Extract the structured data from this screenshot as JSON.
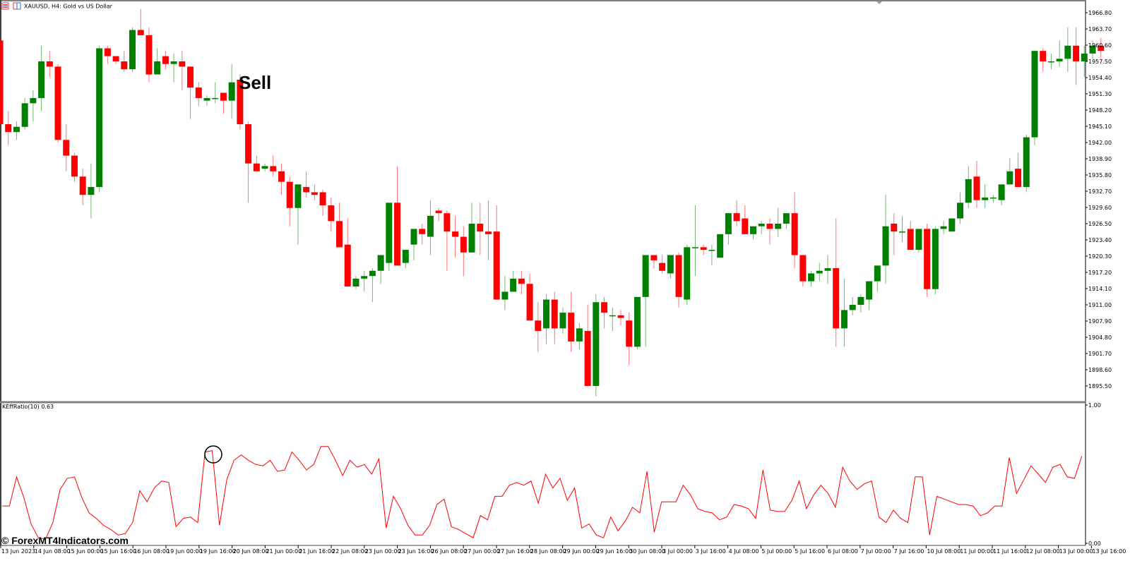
{
  "window": {
    "title": "XAUUSD, H4:  Gold vs US Dollar",
    "icons": [
      "chart-list-icon",
      "chart-window-icon"
    ]
  },
  "annotations": {
    "signal_label": "Sell",
    "watermark": "© ForexMT4Indicators.com"
  },
  "indicator": {
    "label": "KEffRatio(10) 0.63",
    "scale_top": "1.00",
    "scale_bottom": "0.00"
  },
  "colors": {
    "bull": "#008000",
    "bear": "#ff0000",
    "indicator_line": "#ff0000",
    "axis": "#808080",
    "background": "#ffffff"
  },
  "chart_data": [
    {
      "type": "candlestick",
      "title": "XAUUSD, H4: Gold vs US Dollar",
      "xlabel": "",
      "ylabel": "",
      "ylim": [
        1893.0,
        1969.0
      ],
      "y_ticks": [
        "1966.80",
        "1963.70",
        "1960.60",
        "1957.50",
        "1954.40",
        "1951.30",
        "1948.20",
        "1945.10",
        "1942.00",
        "1938.90",
        "1935.80",
        "1932.70",
        "1929.60",
        "1926.50",
        "1923.40",
        "1920.30",
        "1917.20",
        "1914.10",
        "1911.00",
        "1907.90",
        "1904.80",
        "1901.70",
        "1898.60",
        "1895.50"
      ],
      "x_ticks": [
        "13 Jun 2023",
        "14 Jun 08:00",
        "15 Jun 00:00",
        "15 Jun 16:00",
        "16 Jun 08:00",
        "19 Jun 00:00",
        "19 Jun 16:00",
        "20 Jun 08:00",
        "21 Jun 00:00",
        "21 Jun 16:00",
        "22 Jun 08:00",
        "23 Jun 00:00",
        "23 Jun 16:00",
        "26 Jun 08:00",
        "27 Jun 00:00",
        "27 Jun 16:00",
        "28 Jun 08:00",
        "29 Jun 00:00",
        "29 Jun 16:00",
        "30 Jun 08:00",
        "3 Jul 00:00",
        "3 Jul 16:00",
        "4 Jul 08:00",
        "5 Jul 00:00",
        "5 Jul 16:00",
        "6 Jul 08:00",
        "7 Jul 00:00",
        "7 Jul 16:00",
        "10 Jul 08:00",
        "11 Jul 00:00",
        "11 Jul 16:00",
        "12 Jul 08:00",
        "13 Jul 00:00",
        "13 Jul 16:00"
      ],
      "annotation": {
        "text": "Sell",
        "at_candle": 28
      },
      "candles": [
        [
          1961.5,
          1962.0,
          1945.0,
          1945.5
        ],
        [
          1945.5,
          1948.0,
          1941.5,
          1944.0
        ],
        [
          1944.0,
          1946.0,
          1942.5,
          1945.0
        ],
        [
          1945.0,
          1950.5,
          1944.5,
          1949.5
        ],
        [
          1949.5,
          1952.0,
          1946.0,
          1950.5
        ],
        [
          1950.5,
          1960.5,
          1948.0,
          1957.5
        ],
        [
          1957.5,
          1959.5,
          1954.5,
          1956.5
        ],
        [
          1956.5,
          1957.0,
          1942.0,
          1942.5
        ],
        [
          1942.5,
          1945.5,
          1936.5,
          1939.5
        ],
        [
          1939.5,
          1940.0,
          1934.5,
          1935.5
        ],
        [
          1935.5,
          1937.0,
          1930.0,
          1932.0
        ],
        [
          1932.0,
          1938.0,
          1927.5,
          1933.5
        ],
        [
          1933.5,
          1960.5,
          1932.5,
          1960.0
        ],
        [
          1960.0,
          1960.5,
          1957.0,
          1958.5
        ],
        [
          1958.5,
          1958.5,
          1957.0,
          1957.5
        ],
        [
          1957.5,
          1959.5,
          1955.5,
          1956.0
        ],
        [
          1956.0,
          1964.0,
          1955.5,
          1963.5
        ],
        [
          1963.5,
          1967.5,
          1962.5,
          1962.5
        ],
        [
          1962.5,
          1964.0,
          1953.5,
          1955.0
        ],
        [
          1955.0,
          1960.0,
          1955.0,
          1957.5
        ],
        [
          1958.5,
          1959.5,
          1956.0,
          1957.0
        ],
        [
          1957.0,
          1959.0,
          1953.5,
          1957.5
        ],
        [
          1957.5,
          1959.5,
          1952.0,
          1956.5
        ],
        [
          1956.5,
          1956.5,
          1946.5,
          1952.5
        ],
        [
          1952.5,
          1953.5,
          1949.0,
          1950.5
        ],
        [
          1950.0,
          1951.0,
          1949.0,
          1950.5
        ],
        [
          1950.5,
          1953.5,
          1949.5,
          1950.5
        ],
        [
          1951.5,
          1951.0,
          1947.5,
          1950.0
        ],
        [
          1950.0,
          1957.0,
          1946.5,
          1953.5
        ],
        [
          1954.0,
          1955.0,
          1944.5,
          1945.5
        ],
        [
          1945.5,
          1946.0,
          1930.5,
          1938.0
        ],
        [
          1938.0,
          1939.5,
          1936.5,
          1936.5
        ],
        [
          1937.0,
          1938.0,
          1936.5,
          1937.5
        ],
        [
          1937.5,
          1939.5,
          1935.5,
          1936.5
        ],
        [
          1936.5,
          1938.0,
          1932.0,
          1934.5
        ],
        [
          1934.5,
          1935.5,
          1926.0,
          1929.5
        ],
        [
          1929.5,
          1934.0,
          1922.5,
          1934.0
        ],
        [
          1933.5,
          1936.5,
          1931.5,
          1932.5
        ],
        [
          1932.5,
          1934.0,
          1931.0,
          1932.0
        ],
        [
          1932.5,
          1933.0,
          1928.0,
          1930.0
        ],
        [
          1930.0,
          1931.5,
          1925.0,
          1927.0
        ],
        [
          1927.0,
          1930.5,
          1922.5,
          1922.0
        ],
        [
          1922.5,
          1927.5,
          1914.5,
          1914.5
        ],
        [
          1914.5,
          1916.5,
          1914.0,
          1916.0
        ],
        [
          1916.0,
          1917.5,
          1913.5,
          1916.5
        ],
        [
          1916.5,
          1918.0,
          1911.5,
          1917.5
        ],
        [
          1917.5,
          1920.0,
          1915.0,
          1920.5
        ],
        [
          1919.0,
          1930.0,
          1917.5,
          1930.5
        ],
        [
          1930.5,
          1937.5,
          1920.0,
          1918.5
        ],
        [
          1919.0,
          1921.0,
          1918.0,
          1921.5
        ],
        [
          1922.5,
          1923.0,
          1919.5,
          1925.5
        ],
        [
          1925.5,
          1926.5,
          1922.5,
          1924.5
        ],
        [
          1924.0,
          1931.0,
          1920.5,
          1928.0
        ],
        [
          1929.0,
          1929.5,
          1927.0,
          1928.5
        ],
        [
          1928.5,
          1929.0,
          1917.5,
          1925.0
        ],
        [
          1925.0,
          1928.0,
          1920.0,
          1924.0
        ],
        [
          1924.0,
          1926.0,
          1916.5,
          1921.0
        ],
        [
          1921.0,
          1930.5,
          1923.0,
          1926.5
        ],
        [
          1926.5,
          1930.5,
          1920.5,
          1925.0
        ],
        [
          1925.0,
          1931.0,
          1919.5,
          1924.5
        ],
        [
          1925.0,
          1930.0,
          1912.5,
          1912.0
        ],
        [
          1912.0,
          1916.5,
          1910.0,
          1913.5
        ],
        [
          1913.5,
          1917.5,
          1913.5,
          1916.0
        ],
        [
          1916.0,
          1917.5,
          1913.0,
          1915.0
        ],
        [
          1915.0,
          1917.0,
          1909.0,
          1908.0
        ],
        [
          1908.0,
          1911.5,
          1902.0,
          1906.0
        ],
        [
          1906.5,
          1913.0,
          1903.5,
          1912.0
        ],
        [
          1912.0,
          1913.5,
          1903.5,
          1906.5
        ],
        [
          1906.5,
          1910.5,
          1905.5,
          1909.5
        ],
        [
          1909.5,
          1913.5,
          1902.0,
          1904.0
        ],
        [
          1904.0,
          1907.5,
          1902.5,
          1906.5
        ],
        [
          1906.0,
          1911.0,
          1895.5,
          1895.5
        ],
        [
          1895.5,
          1913.0,
          1893.5,
          1911.5
        ],
        [
          1911.5,
          1912.5,
          1906.5,
          1909.5
        ],
        [
          1909.0,
          1910.5,
          1906.0,
          1909.0
        ],
        [
          1909.0,
          1910.0,
          1907.0,
          1908.5
        ],
        [
          1908.0,
          1909.5,
          1899.5,
          1903.0
        ],
        [
          1903.0,
          1910.0,
          1902.5,
          1912.5
        ],
        [
          1912.5,
          1913.0,
          1903.0,
          1920.5
        ],
        [
          1920.5,
          1920.5,
          1918.0,
          1919.5
        ],
        [
          1919.0,
          1920.5,
          1917.0,
          1917.5
        ],
        [
          1917.0,
          1920.0,
          1916.0,
          1920.5
        ],
        [
          1920.5,
          1921.0,
          1910.5,
          1912.5
        ],
        [
          1912.0,
          1922.5,
          1911.0,
          1922.0
        ],
        [
          1922.0,
          1930.0,
          1916.5,
          1922.0
        ],
        [
          1922.0,
          1922.5,
          1920.5,
          1921.5
        ],
        [
          1921.5,
          1922.5,
          1918.5,
          1921.5
        ],
        [
          1920.0,
          1922.5,
          1920.0,
          1924.5
        ],
        [
          1924.5,
          1928.0,
          1922.5,
          1928.5
        ],
        [
          1928.5,
          1931.0,
          1926.0,
          1927.0
        ],
        [
          1927.5,
          1930.0,
          1924.5,
          1924.5
        ],
        [
          1924.5,
          1926.0,
          1923.5,
          1926.0
        ],
        [
          1926.0,
          1927.0,
          1924.5,
          1926.5
        ],
        [
          1926.5,
          1927.5,
          1922.5,
          1925.5
        ],
        [
          1925.5,
          1929.5,
          1924.0,
          1926.5
        ],
        [
          1926.5,
          1928.5,
          1925.5,
          1928.5
        ],
        [
          1928.5,
          1932.5,
          1918.0,
          1920.5
        ],
        [
          1920.5,
          1920.5,
          1914.5,
          1915.5
        ],
        [
          1915.5,
          1917.5,
          1914.5,
          1917.0
        ],
        [
          1917.0,
          1919.0,
          1915.5,
          1917.5
        ],
        [
          1917.5,
          1920.5,
          1915.0,
          1918.0
        ],
        [
          1918.0,
          1927.5,
          1903.0,
          1906.5
        ],
        [
          1906.5,
          1916.0,
          1903.0,
          1910.0
        ],
        [
          1910.0,
          1912.5,
          1909.0,
          1911.0
        ],
        [
          1911.0,
          1913.0,
          1909.5,
          1912.5
        ],
        [
          1912.0,
          1913.0,
          1910.0,
          1915.5
        ],
        [
          1915.5,
          1918.5,
          1913.5,
          1918.5
        ],
        [
          1918.5,
          1932.0,
          1915.0,
          1926.0
        ],
        [
          1926.5,
          1928.5,
          1920.5,
          1925.0
        ],
        [
          1925.0,
          1928.0,
          1923.0,
          1925.0
        ],
        [
          1925.5,
          1927.0,
          1921.5,
          1921.5
        ],
        [
          1921.5,
          1924.0,
          1921.0,
          1925.5
        ],
        [
          1925.5,
          1926.5,
          1912.5,
          1914.0
        ],
        [
          1914.0,
          1926.0,
          1913.0,
          1925.5
        ],
        [
          1925.5,
          1927.0,
          1924.5,
          1926.0
        ],
        [
          1925.0,
          1926.5,
          1925.0,
          1927.5
        ],
        [
          1927.5,
          1932.5,
          1926.5,
          1930.5
        ],
        [
          1930.5,
          1937.5,
          1929.5,
          1935.0
        ],
        [
          1935.5,
          1938.5,
          1929.5,
          1931.0
        ],
        [
          1931.0,
          1934.0,
          1929.5,
          1931.5
        ],
        [
          1931.5,
          1932.0,
          1930.5,
          1931.5
        ],
        [
          1931.0,
          1934.0,
          1930.0,
          1934.0
        ],
        [
          1934.0,
          1939.0,
          1934.0,
          1936.5
        ],
        [
          1937.0,
          1940.0,
          1933.5,
          1933.5
        ],
        [
          1933.5,
          1943.5,
          1932.5,
          1943.0
        ],
        [
          1943.0,
          1949.0,
          1941.5,
          1959.5
        ],
        [
          1959.5,
          1960.0,
          1955.5,
          1957.5
        ],
        [
          1957.5,
          1959.0,
          1956.0,
          1957.5
        ],
        [
          1957.5,
          1961.5,
          1956.5,
          1958.0
        ],
        [
          1958.0,
          1964.0,
          1955.5,
          1960.5
        ],
        [
          1960.5,
          1964.0,
          1953.0,
          1957.5
        ],
        [
          1957.5,
          1960.5,
          1954.5,
          1959.0
        ],
        [
          1959.0,
          1961.5,
          1958.0,
          1960.5
        ],
        [
          1960.5,
          1962.0,
          1958.0,
          1959.5
        ]
      ]
    },
    {
      "type": "line",
      "title": "KEffRatio(10) 0.63",
      "ylim": [
        0.0,
        1.0
      ],
      "y_ticks": [
        "1.00",
        "0.00"
      ],
      "series": [
        {
          "name": "KEffRatio(10)",
          "values": [
            0.27,
            0.27,
            0.48,
            0.33,
            0.14,
            0.04,
            0.03,
            0.15,
            0.39,
            0.47,
            0.48,
            0.33,
            0.22,
            0.18,
            0.13,
            0.1,
            0.06,
            0.07,
            0.15,
            0.38,
            0.3,
            0.4,
            0.45,
            0.44,
            0.12,
            0.18,
            0.19,
            0.15,
            0.66,
            0.67,
            0.13,
            0.46,
            0.6,
            0.64,
            0.6,
            0.57,
            0.56,
            0.6,
            0.52,
            0.53,
            0.66,
            0.6,
            0.53,
            0.57,
            0.7,
            0.7,
            0.6,
            0.49,
            0.6,
            0.55,
            0.57,
            0.5,
            0.61,
            0.11,
            0.34,
            0.25,
            0.13,
            0.06,
            0.06,
            0.13,
            0.28,
            0.32,
            0.12,
            0.1,
            0.07,
            0.04,
            0.2,
            0.17,
            0.34,
            0.34,
            0.42,
            0.44,
            0.42,
            0.45,
            0.29,
            0.5,
            0.4,
            0.47,
            0.31,
            0.4,
            0.11,
            0.14,
            0.06,
            0.04,
            0.19,
            0.09,
            0.16,
            0.26,
            0.22,
            0.52,
            0.08,
            0.3,
            0.3,
            0.3,
            0.42,
            0.35,
            0.25,
            0.23,
            0.22,
            0.17,
            0.19,
            0.28,
            0.27,
            0.25,
            0.18,
            0.53,
            0.24,
            0.23,
            0.23,
            0.31,
            0.45,
            0.25,
            0.35,
            0.42,
            0.36,
            0.26,
            0.55,
            0.45,
            0.39,
            0.43,
            0.45,
            0.19,
            0.15,
            0.24,
            0.18,
            0.15,
            0.48,
            0.48,
            0.06,
            0.34,
            0.32,
            0.3,
            0.28,
            0.28,
            0.27,
            0.2,
            0.22,
            0.27,
            0.27,
            0.62,
            0.36,
            0.46,
            0.56,
            0.5,
            0.44,
            0.55,
            0.57,
            0.48,
            0.47,
            0.63
          ]
        }
      ]
    }
  ]
}
